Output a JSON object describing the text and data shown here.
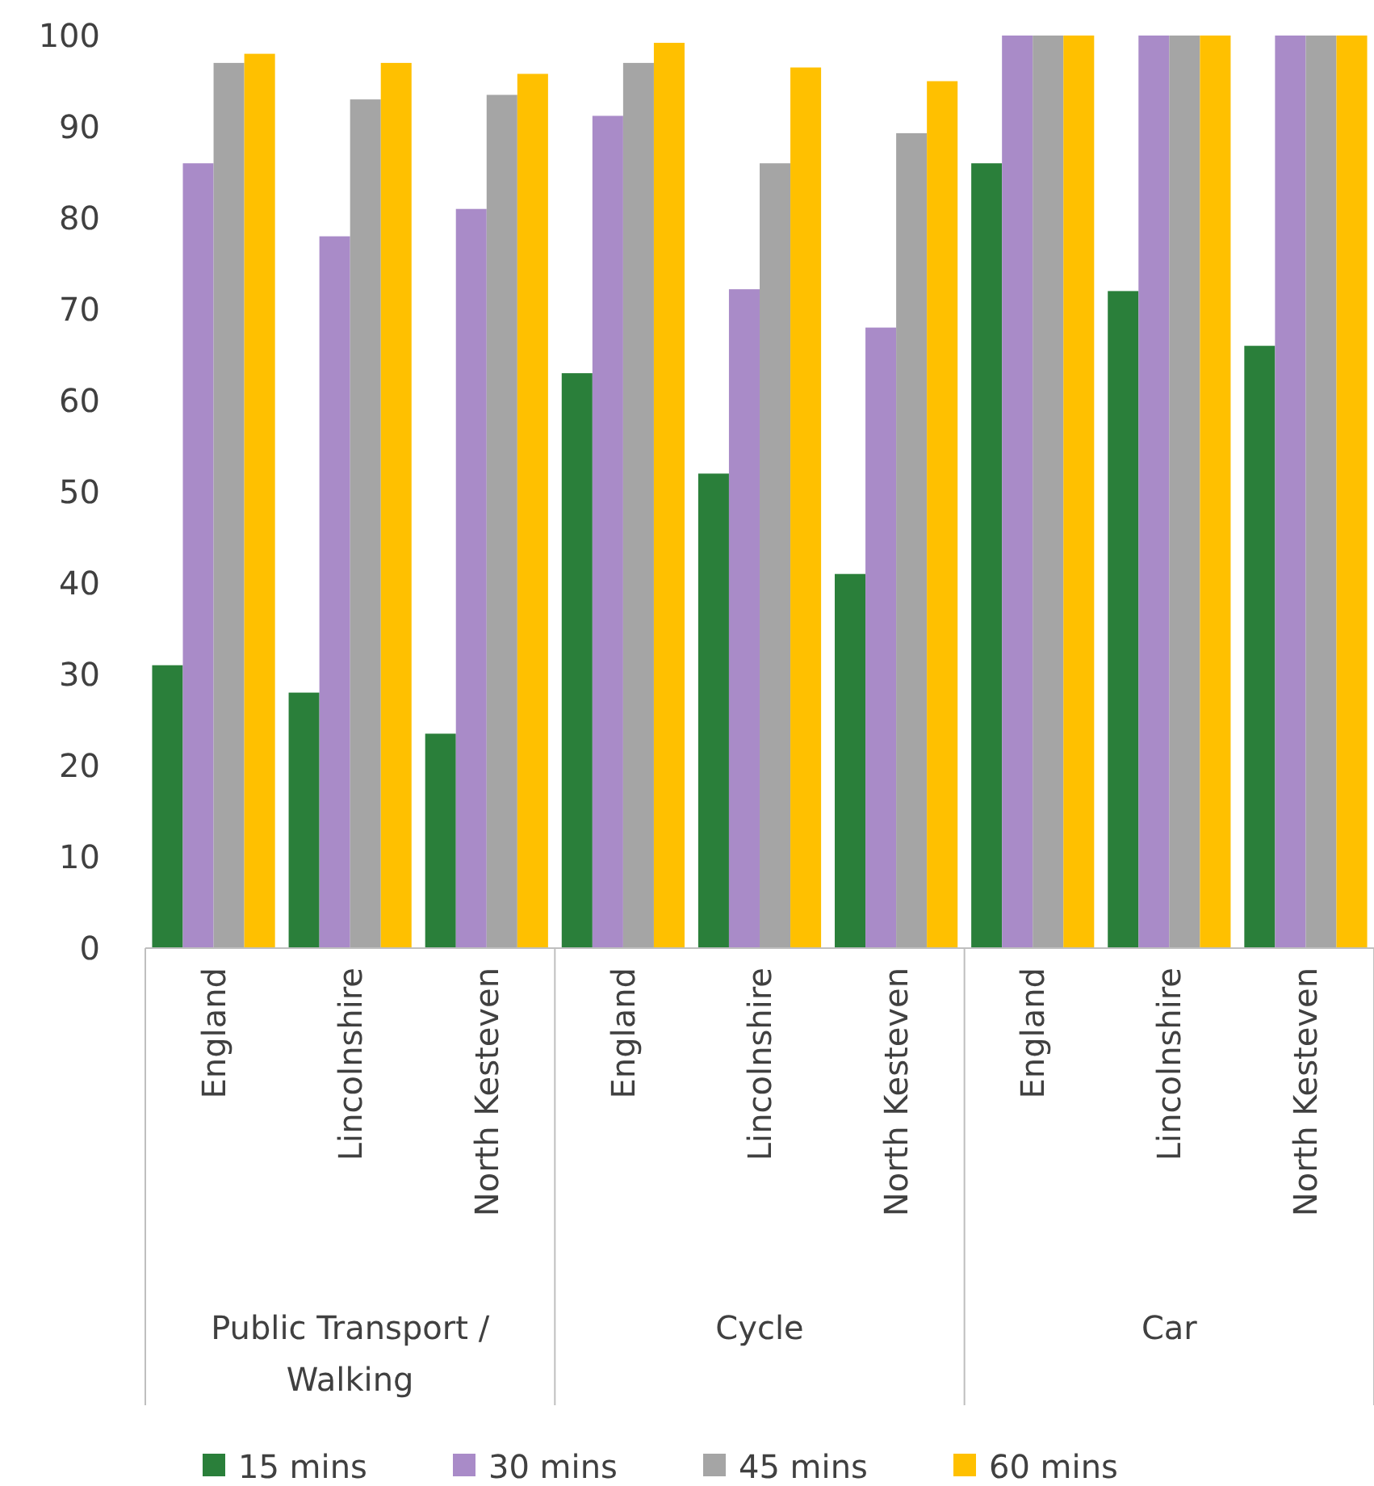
{
  "chart_data": {
    "type": "bar",
    "categories": [
      "England",
      "Lincolnshire",
      "North Kesteven",
      "England",
      "Lincolnshire",
      "North Kesteven",
      "England",
      "Lincolnshire",
      "North Kesteven"
    ],
    "annotations": [
      "Public Transport / Walking",
      "Cycle",
      "Car"
    ],
    "series": [
      {
        "name": "15 mins",
        "color": "#2a7f3a",
        "values": [
          31,
          28,
          23.5,
          63,
          52,
          41,
          86,
          72,
          66
        ]
      },
      {
        "name": "30 mins",
        "color": "#a98bc8",
        "values": [
          86,
          78,
          81,
          91.2,
          72.2,
          68,
          100,
          100,
          100
        ]
      },
      {
        "name": "45 mins",
        "color": "#a5a5a5",
        "values": [
          97,
          93,
          93.5,
          97,
          86,
          89.3,
          100,
          100,
          100
        ]
      },
      {
        "name": "60 mins",
        "color": "#ffc000",
        "values": [
          98,
          97,
          95.8,
          99.2,
          96.5,
          95,
          100,
          100,
          100
        ]
      }
    ],
    "ylim": [
      0,
      100
    ],
    "yticks": [
      0,
      10,
      20,
      30,
      40,
      50,
      60,
      70,
      80,
      90,
      100
    ],
    "grid": false,
    "legend": "bottom"
  }
}
